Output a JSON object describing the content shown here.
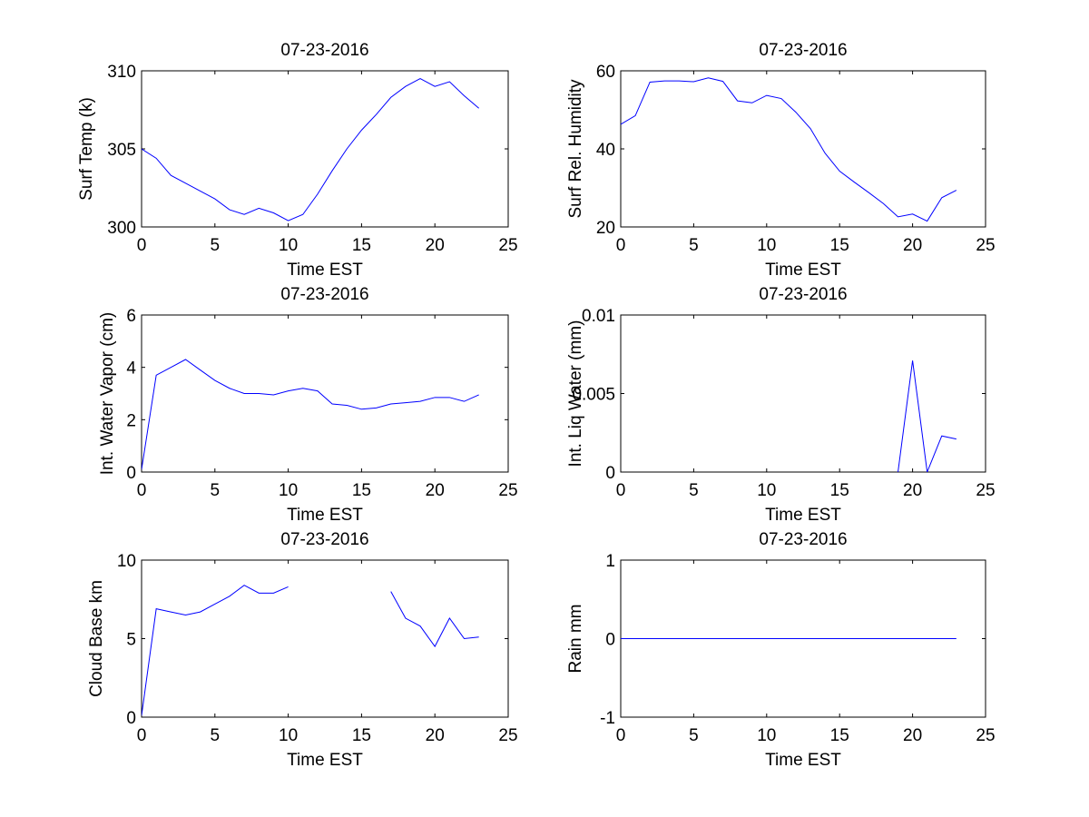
{
  "chart_data": [
    {
      "type": "line",
      "title": "07-23-2016",
      "xlabel": "Time EST",
      "ylabel": "Surf Temp (k)",
      "xlim": [
        0,
        25
      ],
      "ylim": [
        300,
        310
      ],
      "xticks": [
        "0",
        "5",
        "10",
        "15",
        "20",
        "25"
      ],
      "yticks": [
        "300",
        "305",
        "310"
      ],
      "grid": false,
      "series": [
        {
          "color": "#0000ff",
          "x": [
            0,
            1,
            2,
            3,
            4,
            5,
            6,
            7,
            8,
            9,
            10,
            11,
            12,
            13,
            14,
            15,
            16,
            17,
            18,
            19,
            20,
            21,
            22,
            23
          ],
          "y": [
            305.0,
            304.4,
            303.3,
            302.8,
            302.3,
            301.8,
            301.1,
            300.8,
            301.2,
            300.9,
            300.4,
            300.8,
            302.1,
            303.6,
            305.0,
            306.2,
            307.2,
            308.3,
            309.0,
            309.5,
            309.0,
            309.3,
            308.4,
            307.6
          ]
        }
      ]
    },
    {
      "type": "line",
      "title": "07-23-2016",
      "xlabel": "Time EST",
      "ylabel": "Surf Rel. Humidity",
      "xlim": [
        0,
        25
      ],
      "ylim": [
        20,
        60
      ],
      "xticks": [
        "0",
        "5",
        "10",
        "15",
        "20",
        "25"
      ],
      "yticks": [
        "20",
        "40",
        "60"
      ],
      "grid": false,
      "series": [
        {
          "color": "#0000ff",
          "x": [
            0,
            1,
            2,
            3,
            4,
            5,
            6,
            7,
            8,
            9,
            10,
            11,
            12,
            13,
            14,
            15,
            16,
            17,
            18,
            19,
            20,
            21,
            22,
            23
          ],
          "y": [
            46.3,
            48.5,
            57.1,
            57.4,
            57.4,
            57.2,
            58.2,
            57.3,
            52.3,
            51.8,
            53.7,
            52.9,
            49.4,
            45.2,
            38.9,
            34.3,
            31.5,
            28.8,
            26.0,
            22.6,
            23.3,
            21.5,
            27.5,
            29.4
          ]
        }
      ]
    },
    {
      "type": "line",
      "title": "07-23-2016",
      "xlabel": "Time EST",
      "ylabel": "Int. Water Vapor (cm)",
      "xlim": [
        0,
        25
      ],
      "ylim": [
        0,
        6
      ],
      "xticks": [
        "0",
        "5",
        "10",
        "15",
        "20",
        "25"
      ],
      "yticks": [
        "0",
        "2",
        "4",
        "6"
      ],
      "grid": false,
      "series": [
        {
          "color": "#0000ff",
          "x": [
            0,
            1,
            2,
            3,
            4,
            5,
            6,
            7,
            8,
            9,
            10,
            11,
            12,
            13,
            14,
            15,
            16,
            17,
            18,
            19,
            20,
            21,
            22,
            23
          ],
          "y": [
            0.1,
            3.7,
            4.0,
            4.3,
            3.9,
            3.5,
            3.2,
            3.0,
            3.0,
            2.95,
            3.1,
            3.2,
            3.1,
            2.6,
            2.55,
            2.4,
            2.45,
            2.6,
            2.65,
            2.7,
            2.85,
            2.85,
            2.7,
            2.95
          ]
        }
      ]
    },
    {
      "type": "line",
      "title": "07-23-2016",
      "xlabel": "Time EST",
      "ylabel": "Int. Liq Water (mm)",
      "xlim": [
        0,
        25
      ],
      "ylim": [
        0,
        0.01
      ],
      "xticks": [
        "0",
        "5",
        "10",
        "15",
        "20",
        "25"
      ],
      "yticks": [
        "0",
        "0.005",
        "0.01"
      ],
      "grid": false,
      "series": [
        {
          "color": "#0000ff",
          "x": [
            0,
            1,
            2,
            3,
            4,
            5,
            6,
            7,
            8,
            9,
            10,
            11,
            12,
            13,
            14,
            15,
            16,
            17,
            18,
            19,
            20,
            21,
            22,
            23
          ],
          "y": [
            -0.001,
            -0.001,
            -0.001,
            -0.001,
            -0.001,
            -0.001,
            -0.001,
            -0.001,
            -0.001,
            -0.001,
            -0.001,
            -0.001,
            -0.001,
            -0.001,
            -0.001,
            -0.001,
            -0.001,
            -0.001,
            -0.001,
            0,
            0.0071,
            0,
            0.0023,
            0.0021
          ]
        }
      ]
    },
    {
      "type": "line",
      "title": "07-23-2016",
      "xlabel": "Time EST",
      "ylabel": "Cloud Base km",
      "xlim": [
        0,
        25
      ],
      "ylim": [
        0,
        10
      ],
      "xticks": [
        "0",
        "5",
        "10",
        "15",
        "20",
        "25"
      ],
      "yticks": [
        "0",
        "5",
        "10"
      ],
      "grid": false,
      "series": [
        {
          "color": "#0000ff",
          "x": [
            0,
            1,
            2,
            3,
            4,
            5,
            6,
            7,
            8,
            9,
            10,
            11,
            12,
            13,
            14,
            15,
            16,
            17,
            18,
            19,
            20,
            21,
            22,
            23
          ],
          "y": [
            0.1,
            6.9,
            6.7,
            6.5,
            6.7,
            7.2,
            7.7,
            8.4,
            7.9,
            7.9,
            8.3,
            null,
            null,
            null,
            null,
            null,
            null,
            8.0,
            6.3,
            5.8,
            4.5,
            6.3,
            5.0,
            5.1
          ]
        }
      ]
    },
    {
      "type": "line",
      "title": "07-23-2016",
      "xlabel": "Time EST",
      "ylabel": "Rain mm",
      "xlim": [
        0,
        25
      ],
      "ylim": [
        -1,
        1
      ],
      "xticks": [
        "0",
        "5",
        "10",
        "15",
        "20",
        "25"
      ],
      "yticks": [
        "-1",
        "0",
        "1"
      ],
      "grid": false,
      "series": [
        {
          "color": "#0000ff",
          "x": [
            0,
            1,
            2,
            3,
            4,
            5,
            6,
            7,
            8,
            9,
            10,
            11,
            12,
            13,
            14,
            15,
            16,
            17,
            18,
            19,
            20,
            21,
            22,
            23
          ],
          "y": [
            0,
            0,
            0,
            0,
            0,
            0,
            0,
            0,
            0,
            0,
            0,
            0,
            0,
            0,
            0,
            0,
            0,
            0,
            0,
            0,
            0,
            0,
            0,
            0
          ]
        }
      ]
    }
  ]
}
